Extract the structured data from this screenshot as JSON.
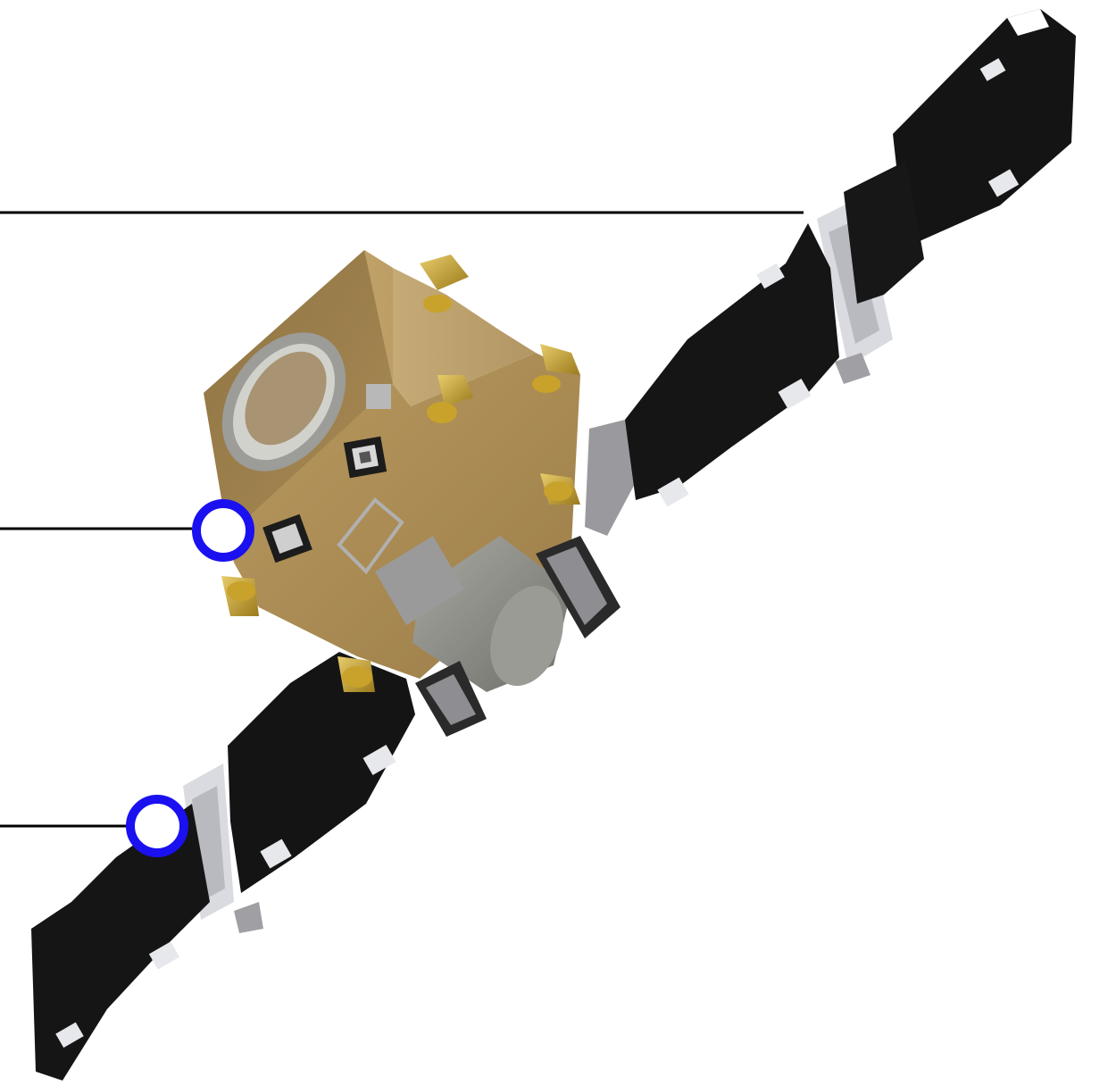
{
  "figure": {
    "subject": "satellite-render",
    "colors": {
      "background": "#ffffff",
      "leader_line": "#000000",
      "marker_ring": "#1a10f0",
      "marker_fill": "#ffffff",
      "bus_gold": "#a88a55",
      "bus_gold_dark": "#7d6438",
      "solar_cell": "#141414",
      "panel_frame": "#d9dbe0",
      "thruster_gold": "#c8a22a",
      "tank_gray": "#8f8f8a"
    }
  }
}
